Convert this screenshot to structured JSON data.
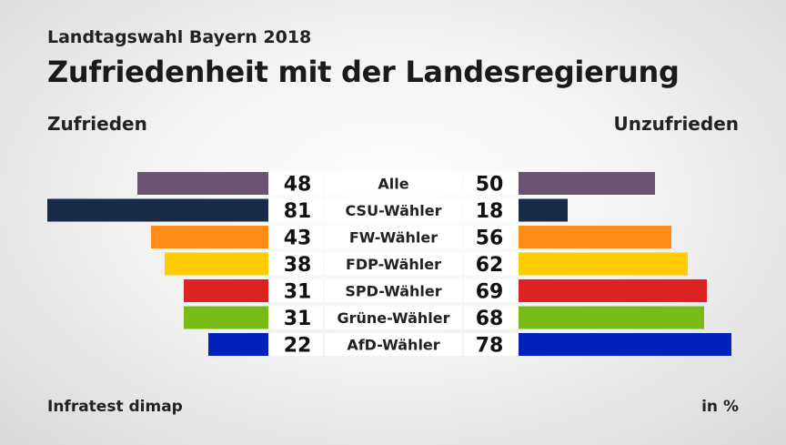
{
  "header": {
    "subtitle": "Landtagswahl Bayern 2018",
    "title": "Zufriedenheit mit der Landesregierung"
  },
  "legend": {
    "left": "Zufrieden",
    "right": "Unzufrieden"
  },
  "footer": {
    "source": "Infratest dimap",
    "unit": "in %"
  },
  "chart_data": {
    "type": "bar",
    "orientation": "diverging-horizontal",
    "categories": [
      "Alle",
      "CSU-Wähler",
      "FW-Wähler",
      "FDP-Wähler",
      "SPD-Wähler",
      "Grüne-Wähler",
      "AfD-Wähler"
    ],
    "series": [
      {
        "name": "Zufrieden",
        "values": [
          48,
          81,
          43,
          38,
          31,
          31,
          22
        ]
      },
      {
        "name": "Unzufrieden",
        "values": [
          50,
          18,
          56,
          62,
          69,
          68,
          78
        ]
      }
    ],
    "colors": [
      "#6a5373",
      "#1a2b4a",
      "#ff8c17",
      "#ffcc00",
      "#dd2222",
      "#78bb17",
      "#0022bb"
    ],
    "unit": "in %"
  }
}
